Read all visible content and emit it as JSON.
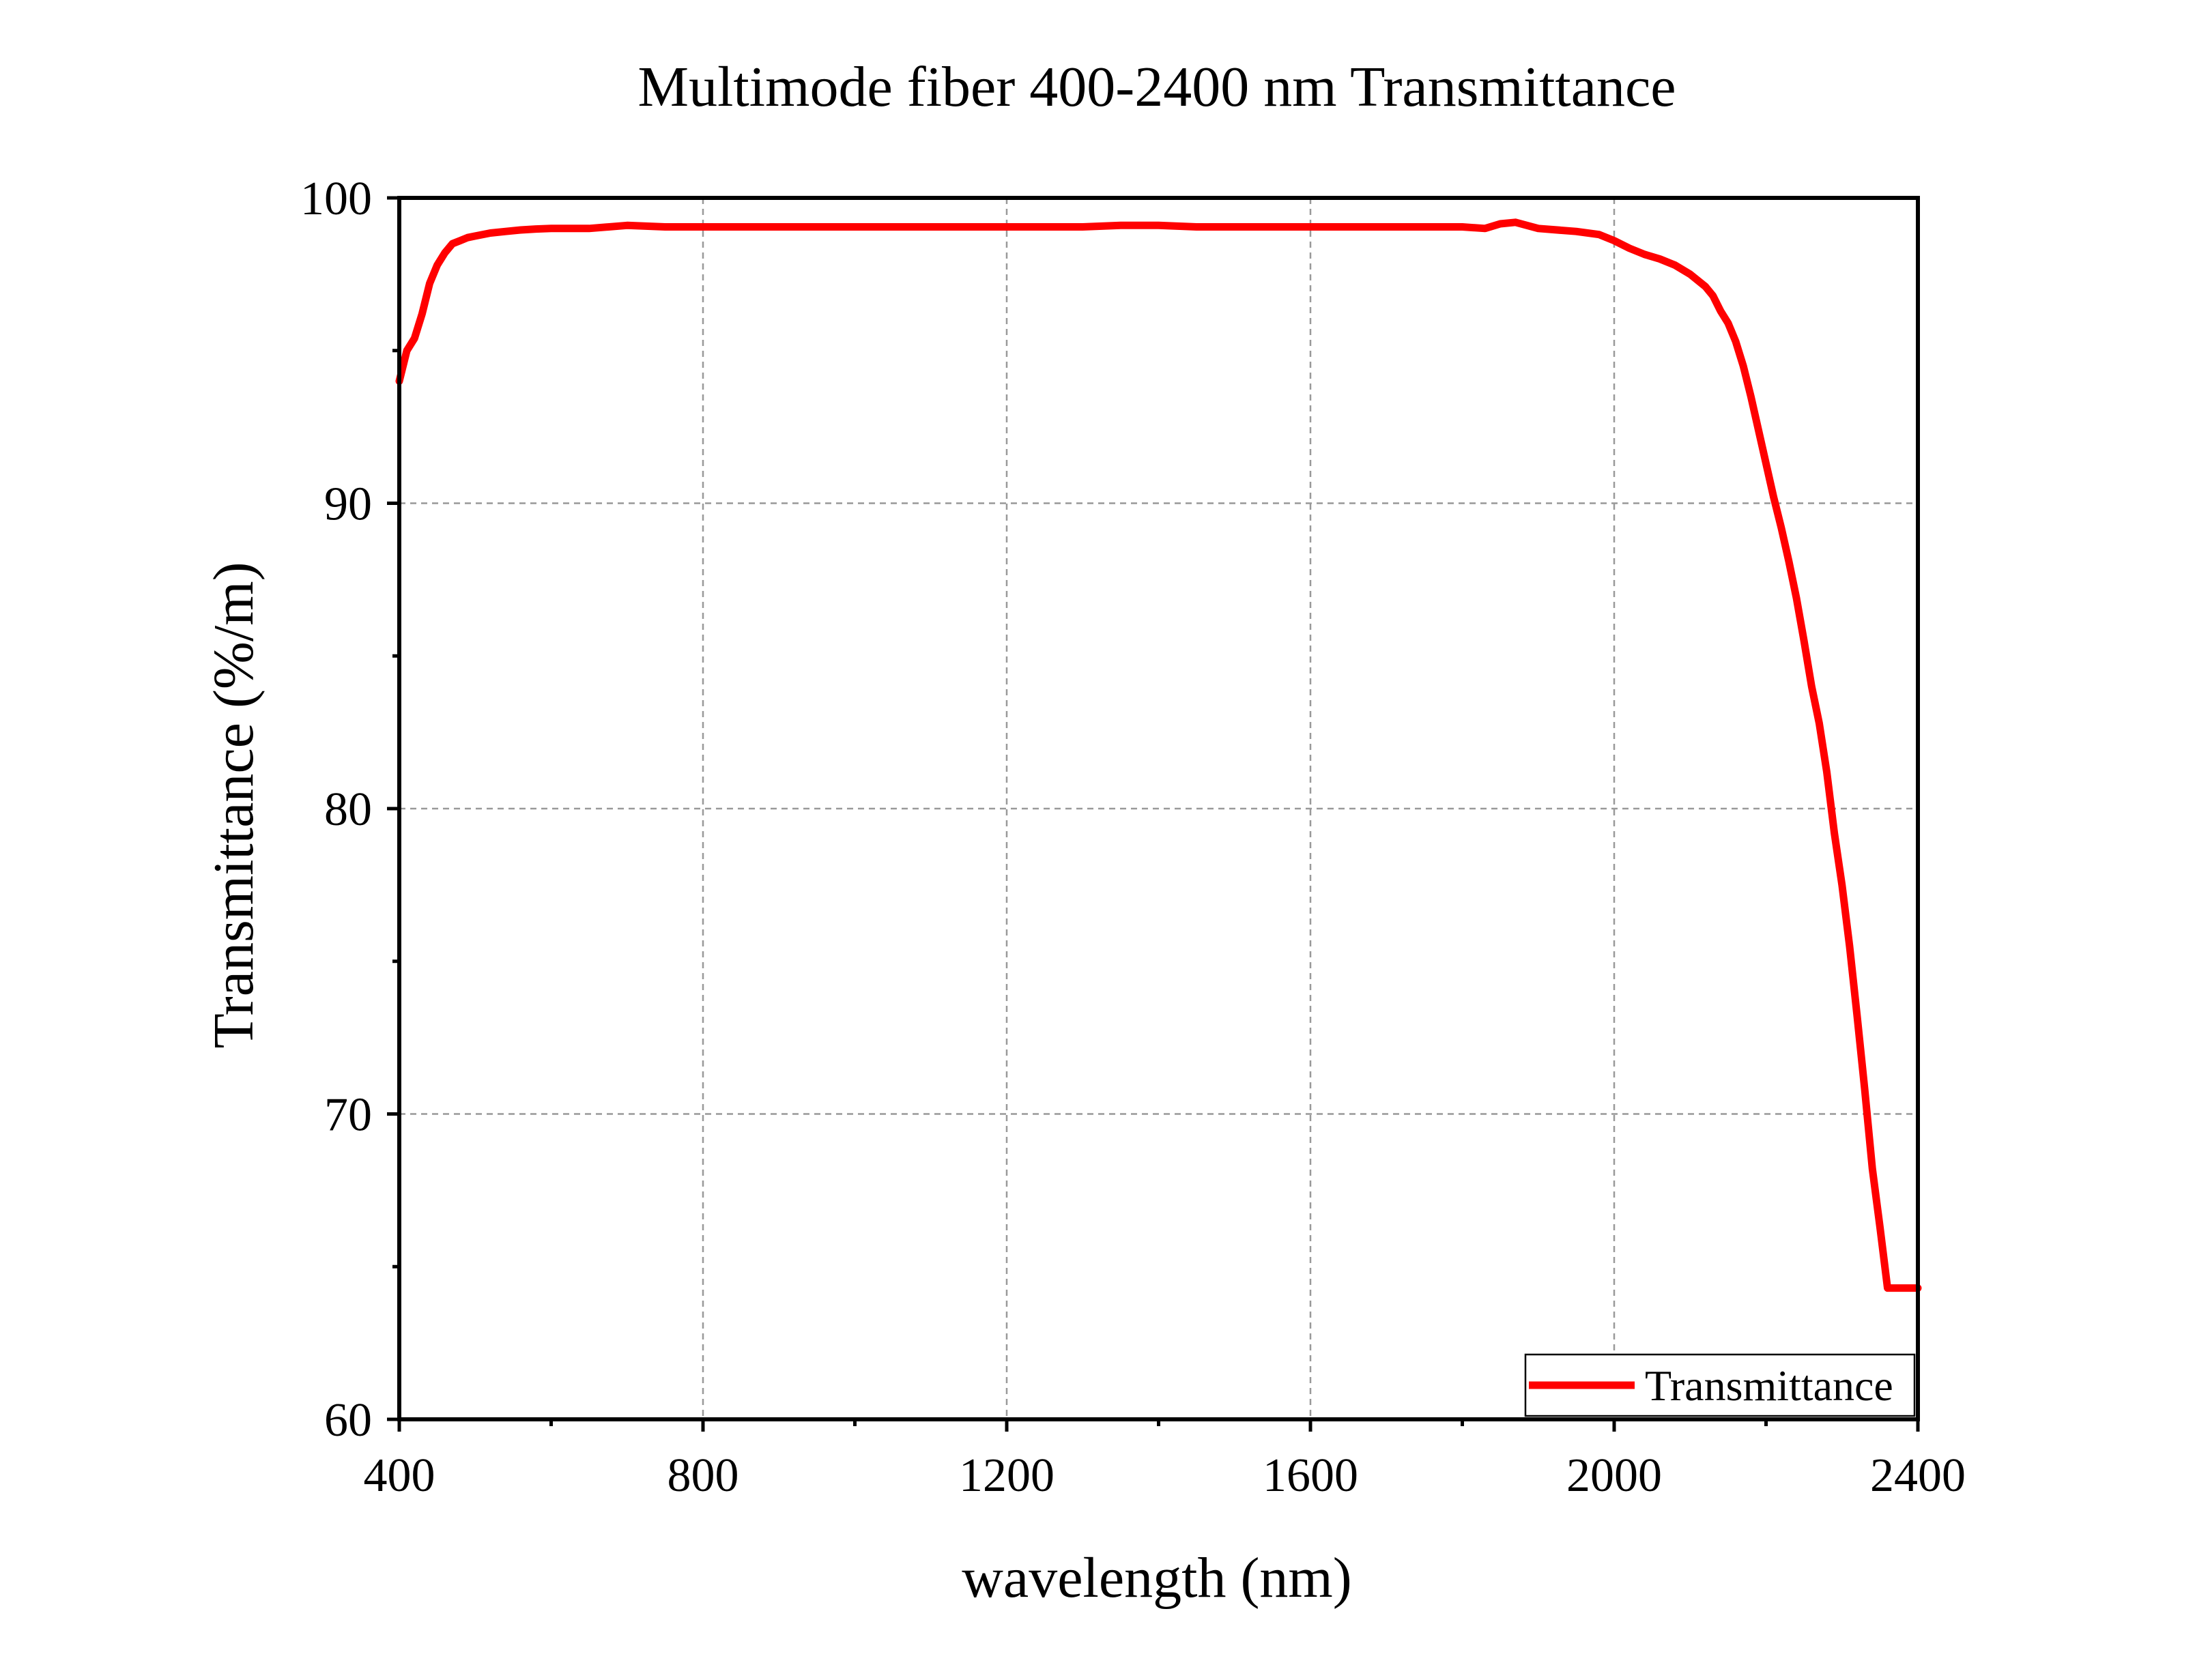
{
  "chart_data": {
    "type": "line",
    "title": "Multimode fiber 400-2400 nm Transmittance",
    "xlabel": "wavelength (nm)",
    "ylabel": "Transmittance (%/m)",
    "xlim": [
      400,
      2400
    ],
    "ylim": [
      60,
      100
    ],
    "x_ticks": [
      "400",
      "800",
      "1200",
      "1600",
      "2000",
      "2400"
    ],
    "y_ticks": [
      "60",
      "70",
      "80",
      "90",
      "100"
    ],
    "grid": true,
    "legend_position": "bottom-right",
    "line_color": "#ff0000",
    "series": [
      {
        "name": "Transmittance",
        "x": [
          400,
          410,
          420,
          430,
          440,
          450,
          460,
          470,
          480,
          490,
          500,
          520,
          540,
          560,
          580,
          600,
          650,
          700,
          750,
          800,
          900,
          1000,
          1100,
          1200,
          1300,
          1350,
          1400,
          1450,
          1500,
          1600,
          1700,
          1800,
          1830,
          1850,
          1870,
          1900,
          1950,
          1980,
          2000,
          2020,
          2040,
          2060,
          2080,
          2100,
          2120,
          2130,
          2140,
          2150,
          2160,
          2170,
          2180,
          2190,
          2200,
          2210,
          2220,
          2230,
          2240,
          2250,
          2260,
          2270,
          2280,
          2290,
          2300,
          2310,
          2320,
          2330,
          2340,
          2350,
          2360,
          2370,
          2380,
          2390,
          2400
        ],
        "y": [
          94.0,
          95.0,
          95.4,
          96.2,
          97.2,
          97.8,
          98.2,
          98.5,
          98.6,
          98.7,
          98.75,
          98.85,
          98.9,
          98.95,
          98.98,
          99.0,
          99.0,
          99.1,
          99.05,
          99.05,
          99.05,
          99.05,
          99.05,
          99.05,
          99.05,
          99.1,
          99.1,
          99.05,
          99.05,
          99.05,
          99.05,
          99.05,
          99.0,
          99.15,
          99.2,
          99.0,
          98.9,
          98.8,
          98.6,
          98.35,
          98.15,
          98.0,
          97.8,
          97.5,
          97.1,
          96.8,
          96.3,
          95.9,
          95.3,
          94.5,
          93.5,
          92.4,
          91.3,
          90.2,
          89.2,
          88.1,
          86.9,
          85.5,
          84.0,
          82.8,
          81.2,
          79.2,
          77.5,
          75.5,
          73.2,
          70.8,
          68.2,
          66.3,
          64.3,
          64.3,
          64.3,
          64.3,
          64.3
        ]
      }
    ]
  }
}
